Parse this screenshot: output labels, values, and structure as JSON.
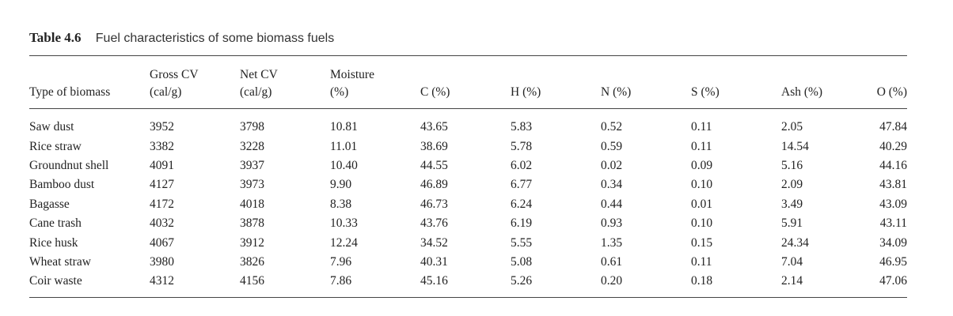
{
  "caption": {
    "number": "Table 4.6",
    "title": "Fuel characteristics of some biomass fuels"
  },
  "columns": [
    {
      "line1": "",
      "line2": "Type of biomass"
    },
    {
      "line1": "Gross CV",
      "line2": "(cal/g)"
    },
    {
      "line1": "Net CV",
      "line2": "(cal/g)"
    },
    {
      "line1": "Moisture",
      "line2": "(%)"
    },
    {
      "line1": "",
      "line2": "C (%)"
    },
    {
      "line1": "",
      "line2": "H (%)"
    },
    {
      "line1": "",
      "line2": "N (%)"
    },
    {
      "line1": "",
      "line2": "S (%)"
    },
    {
      "line1": "",
      "line2": "Ash (%)"
    },
    {
      "line1": "",
      "line2": "O (%)"
    }
  ],
  "rows": [
    [
      "Saw dust",
      "3952",
      "3798",
      "10.81",
      "43.65",
      "5.83",
      "0.52",
      "0.11",
      "2.05",
      "47.84"
    ],
    [
      "Rice straw",
      "3382",
      "3228",
      "11.01",
      "38.69",
      "5.78",
      "0.59",
      "0.11",
      "14.54",
      "40.29"
    ],
    [
      "Groundnut shell",
      "4091",
      "3937",
      "10.40",
      "44.55",
      "6.02",
      "0.02",
      "0.09",
      "5.16",
      "44.16"
    ],
    [
      "Bamboo dust",
      "4127",
      "3973",
      "9.90",
      "46.89",
      "6.77",
      "0.34",
      "0.10",
      "2.09",
      "43.81"
    ],
    [
      "Bagasse",
      "4172",
      "4018",
      "8.38",
      "46.73",
      "6.24",
      "0.44",
      "0.01",
      "3.49",
      "43.09"
    ],
    [
      "Cane trash",
      "4032",
      "3878",
      "10.33",
      "43.76",
      "6.19",
      "0.93",
      "0.10",
      "5.91",
      "43.11"
    ],
    [
      "Rice husk",
      "4067",
      "3912",
      "12.24",
      "34.52",
      "5.55",
      "1.35",
      "0.15",
      "24.34",
      "34.09"
    ],
    [
      "Wheat straw",
      "3980",
      "3826",
      "7.96",
      "40.31",
      "5.08",
      "0.61",
      "0.11",
      "7.04",
      "46.95"
    ],
    [
      "Coir waste",
      "4312",
      "4156",
      "7.86",
      "45.16",
      "5.26",
      "0.20",
      "0.18",
      "2.14",
      "47.06"
    ]
  ]
}
